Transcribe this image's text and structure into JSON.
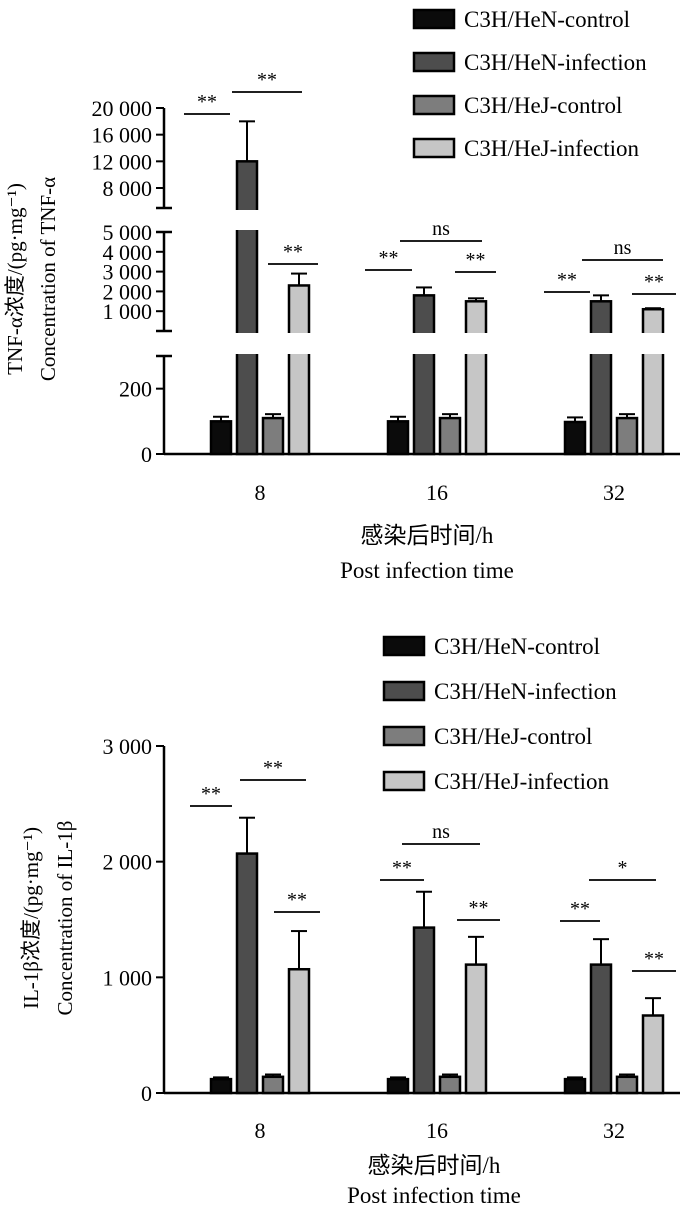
{
  "chart_data": [
    {
      "type": "bar",
      "title": "",
      "categories": [
        "8",
        "16",
        "32"
      ],
      "series": [
        {
          "name": "C3H/HeN-control",
          "color": "#0b0b0b",
          "values": [
            100,
            100,
            98
          ],
          "errors": [
            14,
            14,
            14
          ]
        },
        {
          "name": "C3H/HeN-infection",
          "color": "#4d4d4d",
          "values": [
            12000,
            1800,
            1500
          ],
          "errors": [
            6000,
            400,
            300
          ]
        },
        {
          "name": "C3H/HeJ-control",
          "color": "#7d7d7d",
          "values": [
            110,
            110,
            110
          ],
          "errors": [
            12,
            12,
            12
          ]
        },
        {
          "name": "C3H/HeJ-infection",
          "color": "#c6c6c6",
          "values": [
            2300,
            1500,
            1100
          ],
          "errors": [
            600,
            150,
            50
          ]
        }
      ],
      "xlabel_line1": "感染后时间/h",
      "xlabel_line2": "Post infection time",
      "ylabel_line1": "TNF-α浓度/(pg·mg⁻¹)",
      "ylabel_line2": "Concentration of TNF-α",
      "y_segments": [
        {
          "range": [
            0,
            300
          ],
          "ticks": [
            "0",
            "200"
          ]
        },
        {
          "range": [
            0,
            5000
          ],
          "ticks": [
            "1 000",
            "2 000",
            "3 000",
            "4 000",
            "5 000"
          ]
        },
        {
          "range": [
            5000,
            20000
          ],
          "ticks": [
            "8 000",
            "12 000",
            "16 000",
            "20 000"
          ]
        }
      ],
      "significance": [
        {
          "group": "8",
          "pair": "HeN-control vs HeN-infection",
          "label": "**"
        },
        {
          "group": "8",
          "pair": "HeN-infection vs HeJ-infection",
          "label": "**"
        },
        {
          "group": "8",
          "pair": "HeJ-control vs HeJ-infection",
          "label": "**"
        },
        {
          "group": "16",
          "pair": "HeN-control vs HeN-infection",
          "label": "**"
        },
        {
          "group": "16",
          "pair": "HeN-infection vs HeJ-infection",
          "label": "ns"
        },
        {
          "group": "16",
          "pair": "HeJ-control vs HeJ-infection",
          "label": "**"
        },
        {
          "group": "32",
          "pair": "HeN-control vs HeN-infection",
          "label": "**"
        },
        {
          "group": "32",
          "pair": "HeN-infection vs HeJ-infection",
          "label": "ns"
        },
        {
          "group": "32",
          "pair": "HeJ-control vs HeJ-infection",
          "label": "**"
        }
      ],
      "legend_position": "top-right"
    },
    {
      "type": "bar",
      "title": "",
      "categories": [
        "8",
        "16",
        "32"
      ],
      "series": [
        {
          "name": "C3H/HeN-control",
          "color": "#0b0b0b",
          "values": [
            120,
            120,
            120
          ],
          "errors": [
            15,
            15,
            15
          ]
        },
        {
          "name": "C3H/HeN-infection",
          "color": "#4d4d4d",
          "values": [
            2070,
            1430,
            1110
          ],
          "errors": [
            310,
            310,
            220
          ]
        },
        {
          "name": "C3H/HeJ-control",
          "color": "#7d7d7d",
          "values": [
            140,
            140,
            140
          ],
          "errors": [
            20,
            20,
            20
          ]
        },
        {
          "name": "C3H/HeJ-infection",
          "color": "#c6c6c6",
          "values": [
            1070,
            1110,
            670
          ],
          "errors": [
            330,
            240,
            150
          ]
        }
      ],
      "xlabel_line1": "感染后时间/h",
      "xlabel_line2": "Post infection time",
      "ylabel_line1": "IL-1β浓度/(pg·mg⁻¹)",
      "ylabel_line2": "Concentration of IL-1β",
      "ylim": [
        0,
        3000
      ],
      "yticks": [
        0,
        1000,
        2000,
        3000
      ],
      "ytick_labels": [
        "0",
        "1 000",
        "2 000",
        "3 000"
      ],
      "significance": [
        {
          "group": "8",
          "pair": "HeN-control vs HeN-infection",
          "label": "**"
        },
        {
          "group": "8",
          "pair": "HeN-infection vs HeJ-infection",
          "label": "**"
        },
        {
          "group": "8",
          "pair": "HeJ-control vs HeJ-infection",
          "label": "**"
        },
        {
          "group": "16",
          "pair": "HeN-control vs HeN-infection",
          "label": "**"
        },
        {
          "group": "16",
          "pair": "HeN-infection vs HeJ-infection",
          "label": "ns"
        },
        {
          "group": "16",
          "pair": "HeJ-control vs HeJ-infection",
          "label": "**"
        },
        {
          "group": "32",
          "pair": "HeN-control vs HeN-infection",
          "label": "**"
        },
        {
          "group": "32",
          "pair": "HeN-infection vs HeJ-infection",
          "label": "*"
        },
        {
          "group": "32",
          "pair": "HeJ-control vs HeJ-infection",
          "label": "**"
        }
      ],
      "legend_position": "top-right"
    }
  ]
}
